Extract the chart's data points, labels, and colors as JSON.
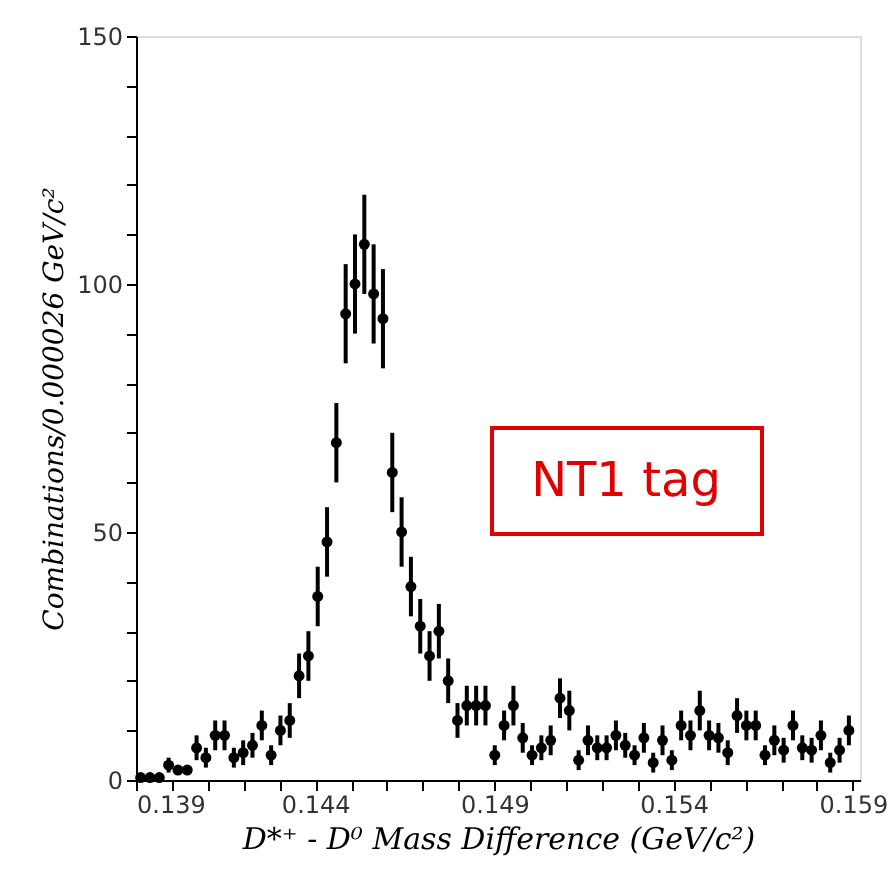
{
  "chart_data": {
    "type": "scatter",
    "xlabel": "D*⁺ - D⁰ Mass Difference (GeV/c²)",
    "ylabel": "Combinations/0.000026 GeV/c²",
    "annotations": [
      "NT1 tag"
    ],
    "x": [
      0.13913,
      0.13939,
      0.13965,
      0.13991,
      0.14017,
      0.14043,
      0.14069,
      0.14095,
      0.14121,
      0.14147,
      0.14173,
      0.14199,
      0.14225,
      0.14251,
      0.14277,
      0.14303,
      0.14329,
      0.14355,
      0.14381,
      0.14407,
      0.14433,
      0.14459,
      0.14485,
      0.14511,
      0.14537,
      0.14563,
      0.14589,
      0.14615,
      0.14641,
      0.14667,
      0.14693,
      0.14719,
      0.14745,
      0.14771,
      0.14797,
      0.14823,
      0.14849,
      0.14875,
      0.14901,
      0.14927,
      0.14953,
      0.14979,
      0.15005,
      0.15031,
      0.15057,
      0.15083,
      0.15109,
      0.15135,
      0.15161,
      0.15187,
      0.15213,
      0.15239,
      0.15265,
      0.15291,
      0.15317,
      0.15343,
      0.15369,
      0.15395,
      0.15421,
      0.15447,
      0.15473,
      0.15499,
      0.15525,
      0.15551,
      0.15577,
      0.15603,
      0.15629,
      0.15655,
      0.15681,
      0.15707,
      0.15733,
      0.15759,
      0.15785,
      0.15811,
      0.15837,
      0.15863,
      0.15889
    ],
    "series": [
      {
        "color": "#000000",
        "values": [
          0.5,
          0.5,
          0.5,
          3,
          2,
          2,
          6.5,
          4.5,
          9,
          9,
          4.5,
          5.5,
          7,
          11,
          5,
          10,
          12,
          21,
          25,
          37,
          48,
          68,
          94,
          100,
          108,
          98,
          93,
          62,
          50,
          39,
          31,
          25,
          30,
          20,
          12,
          15,
          15,
          15,
          5,
          11,
          15,
          8.5,
          5,
          6.5,
          8,
          16.5,
          14,
          4,
          8,
          6.5,
          6.5,
          9,
          7,
          5,
          8.5,
          3.5,
          8,
          4,
          11,
          9,
          14,
          9,
          8.5,
          5.5,
          13,
          11,
          11,
          5,
          8,
          6,
          11,
          6.5,
          6,
          9,
          3.5,
          6,
          10
        ],
        "errors": [
          null,
          null,
          null,
          1.5,
          null,
          null,
          2.5,
          2,
          3,
          3,
          2,
          2.5,
          2.5,
          3,
          2,
          3,
          3.5,
          4.5,
          5,
          6,
          7,
          8,
          10,
          10,
          10,
          10,
          10,
          8,
          7,
          6,
          5.5,
          5,
          5.5,
          4.5,
          3.5,
          4,
          4,
          4,
          2,
          3,
          4,
          3,
          2,
          2.5,
          3,
          4,
          4,
          2,
          3,
          2.5,
          2.5,
          3,
          2.5,
          2,
          3,
          2,
          3,
          2,
          3,
          3,
          4,
          3,
          3,
          2.5,
          3.5,
          3,
          3,
          2,
          3,
          2.5,
          3,
          2.5,
          2.5,
          3,
          2,
          2.5,
          3
        ]
      }
    ],
    "marker": "circle",
    "xlim": [
      0.139,
      0.1592
    ],
    "xticks": [
      0.139,
      {
        "value": 0.14,
        "label": null
      },
      {
        "value": 0.141,
        "label": null
      },
      {
        "value": 0.142,
        "label": null
      },
      {
        "value": 0.143,
        "label": null
      },
      0.144,
      {
        "value": 0.145,
        "label": null
      },
      {
        "value": 0.146,
        "label": null
      },
      {
        "value": 0.147,
        "label": null
      },
      {
        "value": 0.148,
        "label": null
      },
      0.149,
      {
        "value": 0.15,
        "label": null
      },
      {
        "value": 0.151,
        "label": null
      },
      {
        "value": 0.152,
        "label": null
      },
      {
        "value": 0.153,
        "label": null
      },
      0.154,
      {
        "value": 0.155,
        "label": null
      },
      {
        "value": 0.156,
        "label": null
      },
      {
        "value": 0.157,
        "label": null
      },
      {
        "value": 0.158,
        "label": null
      },
      0.159
    ],
    "ylim": [
      0,
      150
    ],
    "yticks": [
      0,
      {
        "value": 10,
        "label": null
      },
      {
        "value": 20,
        "label": null
      },
      {
        "value": 30,
        "label": null
      },
      {
        "value": 40,
        "label": null
      },
      50,
      {
        "value": 60,
        "label": null
      },
      {
        "value": 70,
        "label": null
      },
      {
        "value": 80,
        "label": null
      },
      {
        "value": 90,
        "label": null
      },
      100,
      {
        "value": 110,
        "label": null
      },
      {
        "value": 120,
        "label": null
      },
      {
        "value": 130,
        "label": null
      },
      {
        "value": 140,
        "label": null
      },
      150
    ],
    "grid": false,
    "legend": false
  }
}
